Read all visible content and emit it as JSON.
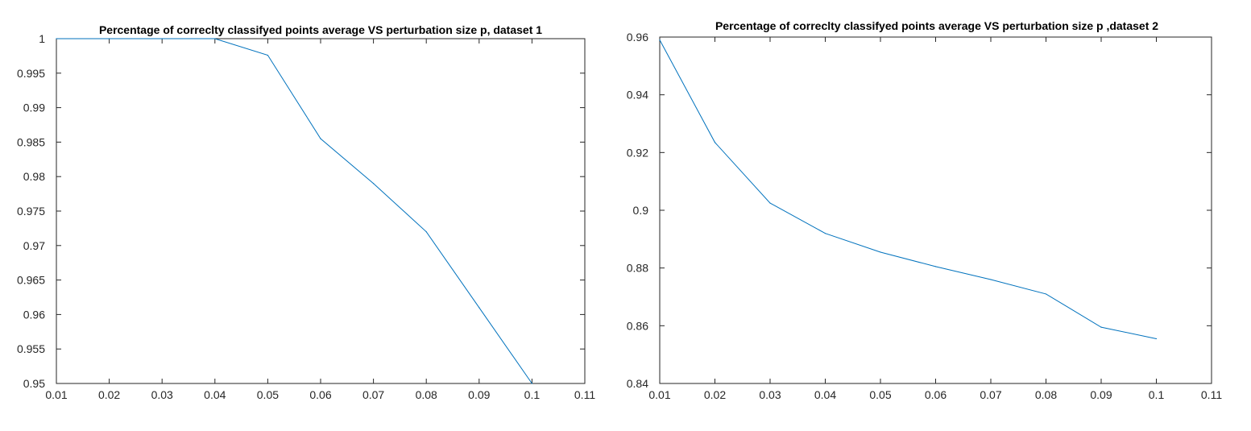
{
  "chart_data": [
    {
      "type": "line",
      "title": "Percentage of correclty classifyed points average VS perturbation size p, dataset 1",
      "xlabel": "",
      "ylabel": "",
      "xlim": [
        0.01,
        0.11
      ],
      "ylim": [
        0.95,
        1.0
      ],
      "grid": false,
      "x_ticks": [
        "0.01",
        "0.02",
        "0.03",
        "0.04",
        "0.05",
        "0.06",
        "0.07",
        "0.08",
        "0.09",
        "0.1",
        "0.11"
      ],
      "y_ticks": [
        "0.95",
        "0.955",
        "0.96",
        "0.965",
        "0.97",
        "0.975",
        "0.98",
        "0.985",
        "0.99",
        "0.995",
        "1"
      ],
      "series": [
        {
          "color": "#0072BD",
          "x": [
            0.01,
            0.02,
            0.03,
            0.04,
            0.05,
            0.06,
            0.07,
            0.08,
            0.09,
            0.1
          ],
          "y": [
            1.0,
            1.0,
            1.0,
            1.0,
            0.9976,
            0.9855,
            0.979,
            0.972,
            0.961,
            0.95
          ]
        }
      ]
    },
    {
      "type": "line",
      "title": "Percentage of correclty classifyed points average VS perturbation size p ,dataset 2",
      "xlabel": "",
      "ylabel": "",
      "xlim": [
        0.01,
        0.11
      ],
      "ylim": [
        0.84,
        0.96
      ],
      "grid": false,
      "x_ticks": [
        "0.01",
        "0.02",
        "0.03",
        "0.04",
        "0.05",
        "0.06",
        "0.07",
        "0.08",
        "0.09",
        "0.1",
        "0.11"
      ],
      "y_ticks": [
        "0.84",
        "0.86",
        "0.88",
        "0.9",
        "0.92",
        "0.94",
        "0.96"
      ],
      "series": [
        {
          "color": "#0072BD",
          "x": [
            0.01,
            0.02,
            0.03,
            0.04,
            0.05,
            0.06,
            0.07,
            0.08,
            0.09,
            0.1
          ],
          "y": [
            0.959,
            0.9235,
            0.9025,
            0.892,
            0.8855,
            0.8805,
            0.876,
            0.871,
            0.8595,
            0.8555
          ]
        }
      ]
    }
  ]
}
